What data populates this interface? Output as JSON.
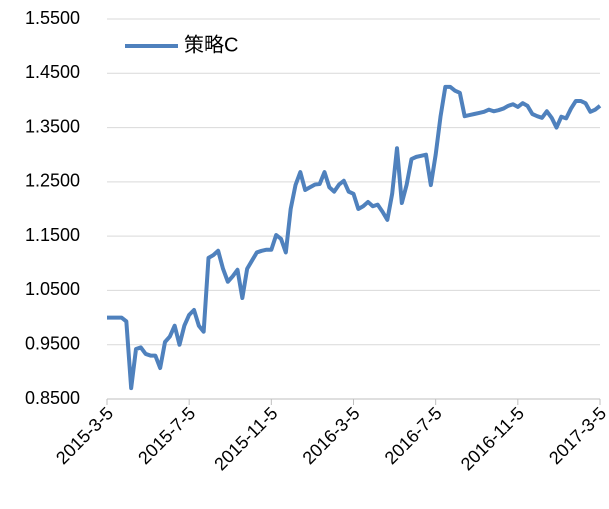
{
  "chart_data": {
    "type": "line",
    "categories": [
      "2015-3-5",
      null,
      null,
      null,
      null,
      null,
      null,
      null,
      null,
      null,
      null,
      null,
      null,
      null,
      null,
      null,
      null,
      "2015-7-5",
      null,
      null,
      null,
      null,
      null,
      null,
      null,
      null,
      null,
      null,
      null,
      null,
      null,
      null,
      null,
      null,
      "2015-11-5",
      null,
      null,
      null,
      null,
      null,
      null,
      null,
      null,
      null,
      null,
      null,
      null,
      null,
      null,
      null,
      null,
      "2016-3-5",
      null,
      null,
      null,
      null,
      null,
      null,
      null,
      null,
      null,
      null,
      null,
      null,
      null,
      null,
      null,
      null,
      "2016-7-5",
      null,
      null,
      null,
      null,
      null,
      null,
      null,
      null,
      null,
      null,
      null,
      null,
      null,
      null,
      null,
      null,
      "2016-11-5",
      null,
      null,
      null,
      null,
      null,
      null,
      null,
      null,
      null,
      null,
      null,
      null,
      null,
      null,
      null,
      null,
      "2017-3-5"
    ],
    "series": [
      {
        "name": "策略C",
        "color": "#4f81bd",
        "values": [
          1.0,
          1.0,
          1.0,
          1.0,
          0.993,
          0.87,
          0.942,
          0.945,
          0.933,
          0.93,
          0.93,
          0.907,
          0.955,
          0.965,
          0.985,
          0.95,
          0.985,
          1.005,
          1.014,
          0.985,
          0.974,
          1.11,
          1.115,
          1.123,
          1.09,
          1.066,
          1.076,
          1.088,
          1.036,
          1.09,
          1.105,
          1.12,
          1.123,
          1.125,
          1.125,
          1.152,
          1.145,
          1.12,
          1.2,
          1.244,
          1.268,
          1.235,
          1.24,
          1.245,
          1.246,
          1.268,
          1.24,
          1.232,
          1.245,
          1.252,
          1.232,
          1.228,
          1.2,
          1.205,
          1.213,
          1.205,
          1.208,
          1.195,
          1.18,
          1.228,
          1.312,
          1.211,
          1.245,
          1.292,
          1.296,
          1.298,
          1.3,
          1.244,
          1.3,
          1.37,
          1.425,
          1.425,
          1.418,
          1.414,
          1.371,
          1.373,
          1.375,
          1.377,
          1.379,
          1.383,
          1.38,
          1.382,
          1.385,
          1.39,
          1.393,
          1.388,
          1.395,
          1.39,
          1.375,
          1.371,
          1.368,
          1.38,
          1.368,
          1.35,
          1.37,
          1.367,
          1.385,
          1.399,
          1.399,
          1.395,
          1.379,
          1.383,
          1.39
        ]
      }
    ],
    "ylim": [
      0.85,
      1.55
    ],
    "yticks": [
      {
        "value": 0.85,
        "label": "0.8500"
      },
      {
        "value": 0.95,
        "label": "0.9500"
      },
      {
        "value": 1.05,
        "label": "1.0500"
      },
      {
        "value": 1.15,
        "label": "1.1500"
      },
      {
        "value": 1.25,
        "label": "1.2500"
      },
      {
        "value": 1.35,
        "label": "1.3500"
      },
      {
        "value": 1.45,
        "label": "1.4500"
      },
      {
        "value": 1.55,
        "label": "1.5500"
      }
    ],
    "grid": true,
    "legend": "upper left"
  }
}
